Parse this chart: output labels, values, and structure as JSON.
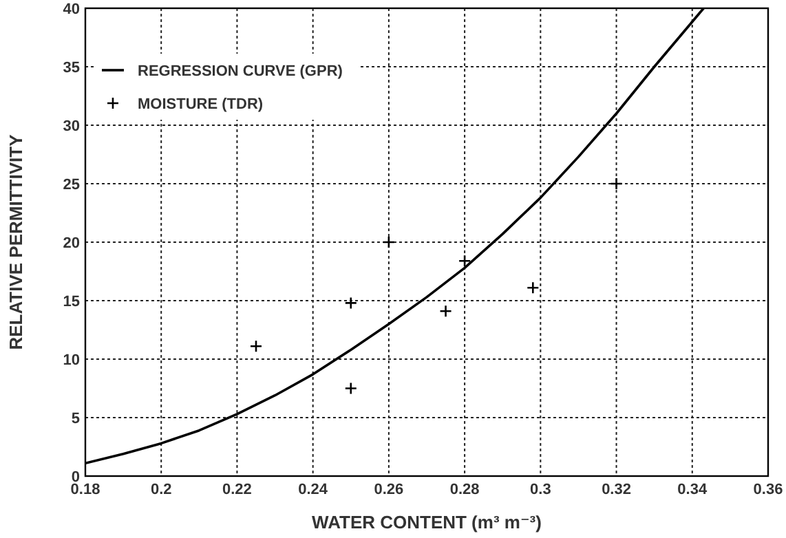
{
  "chart_data": {
    "type": "scatter",
    "xlabel": "WATER CONTENT (m³ m⁻³)",
    "ylabel": "RELATIVE PERMITTIVITY",
    "xlim": [
      0.18,
      0.36
    ],
    "xticks": [
      0.18,
      0.2,
      0.22,
      0.24,
      0.26,
      0.28,
      0.3,
      0.32,
      0.34,
      0.36
    ],
    "ylim": [
      0,
      40
    ],
    "yticks": [
      0,
      5,
      10,
      15,
      20,
      25,
      30,
      35,
      40
    ],
    "grid": true,
    "legend": "top left",
    "series": [
      {
        "name": "REGRESSION CURVE (GPR)",
        "type": "line",
        "color": "#000000",
        "marker": "none",
        "line_style": "solid",
        "x": [
          0.18,
          0.19,
          0.2,
          0.21,
          0.22,
          0.23,
          0.24,
          0.25,
          0.26,
          0.27,
          0.28,
          0.29,
          0.3,
          0.31,
          0.32,
          0.33,
          0.343
        ],
        "values": [
          1.1,
          1.9,
          2.8,
          3.9,
          5.3,
          6.9,
          8.7,
          10.8,
          13.0,
          15.3,
          17.8,
          20.7,
          23.8,
          27.3,
          31.0,
          35.0,
          40
        ]
      },
      {
        "name": "MOISTURE (TDR)",
        "color": "#000000",
        "marker": "cross",
        "x": [
          0.225,
          0.25,
          0.25,
          0.26,
          0.275,
          0.28,
          0.298,
          0.32
        ],
        "values": [
          11.1,
          14.8,
          7.5,
          20,
          14.1,
          18.4,
          16.1,
          25
        ]
      }
    ]
  }
}
